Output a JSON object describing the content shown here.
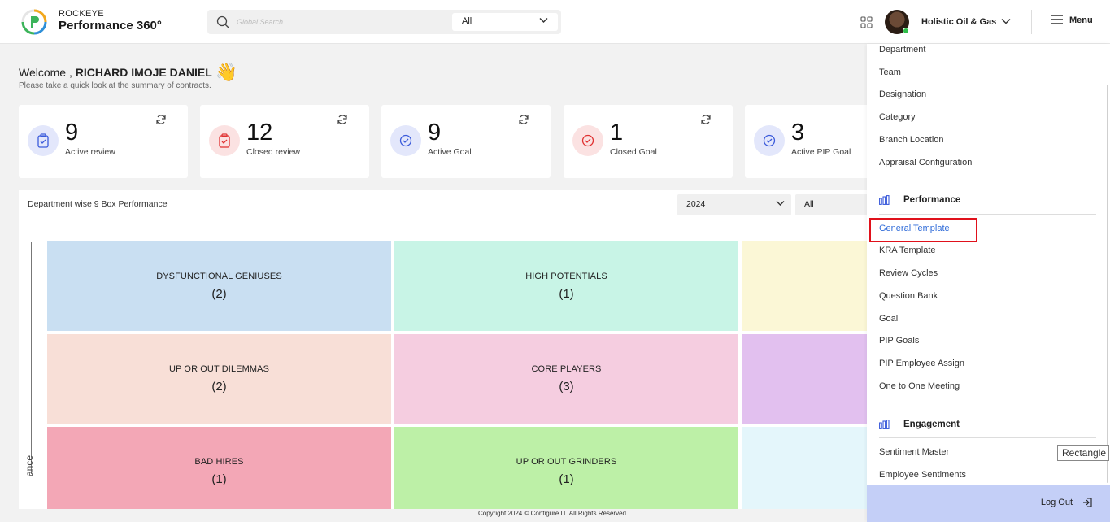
{
  "header": {
    "brand_top": "ROCKEYE",
    "brand_name": "Performance 360°",
    "search_placeholder": "Global Search...",
    "search_filter": "All",
    "company": "Holistic Oil & Gas",
    "menu_label": "Menu"
  },
  "welcome": {
    "prefix": "Welcome ,",
    "name": "RICHARD IMOJE DANIEL",
    "emoji": "👋",
    "subtitle": "Please take a quick look at the summary of contracts."
  },
  "cards": [
    {
      "value": "9",
      "label": "Active review",
      "icon": "clipboard-check-icon",
      "color": "#3b5bdb"
    },
    {
      "value": "12",
      "label": "Closed review",
      "icon": "clipboard-check-icon",
      "color": "#e03131"
    },
    {
      "value": "9",
      "label": "Active Goal",
      "icon": "check-circle-icon",
      "color": "#3b5bdb"
    },
    {
      "value": "1",
      "label": "Closed Goal",
      "icon": "check-circle-icon",
      "color": "#e03131"
    },
    {
      "value": "3",
      "label": "Active PIP Goal",
      "icon": "check-circle-icon",
      "color": "#3b5bdb"
    }
  ],
  "panel": {
    "title": "Department wise 9 Box Performance",
    "year": "2024",
    "filter": "All",
    "axis_label": "ance",
    "boxes": [
      {
        "title": "DYSFUNCTIONAL GENIUSES",
        "count": "(2)",
        "color": "#c9dff2"
      },
      {
        "title": "HIGH POTENTIALS",
        "count": "(1)",
        "color": "#c8f4e6"
      },
      {
        "title": "",
        "count": "",
        "color": "#fbf7d6"
      },
      {
        "title": "UP OR OUT DILEMMAS",
        "count": "(2)",
        "color": "#f8dfd7"
      },
      {
        "title": "CORE PLAYERS",
        "count": "(3)",
        "color": "#f5cde0"
      },
      {
        "title": "",
        "count": "",
        "color": "#e2c0ef"
      },
      {
        "title": "BAD HIRES",
        "count": "(1)",
        "color": "#f3a7b6"
      },
      {
        "title": "UP OR OUT GRINDERS",
        "count": "(1)",
        "color": "#bdf0a7"
      },
      {
        "title": "",
        "count": "",
        "color": "#e4f6fb"
      }
    ]
  },
  "footer": "Copyright 2024 © Configure.IT. All Rights Reserved",
  "menu": {
    "top_items": [
      "Department",
      "Team",
      "Designation",
      "Category",
      "Branch Location",
      "Appraisal Configuration"
    ],
    "performance_title": "Performance",
    "performance_items": [
      "General Template",
      "KRA Template",
      "Review Cycles",
      "Question Bank",
      "Goal",
      "PIP Goals",
      "PIP Employee Assign",
      "One to One Meeting"
    ],
    "engagement_title": "Engagement",
    "engagement_items": [
      "Sentiment Master",
      "Employee Sentiments"
    ],
    "logout": "Log Out",
    "active_item": "General Template"
  },
  "tooltip": "Rectangle"
}
